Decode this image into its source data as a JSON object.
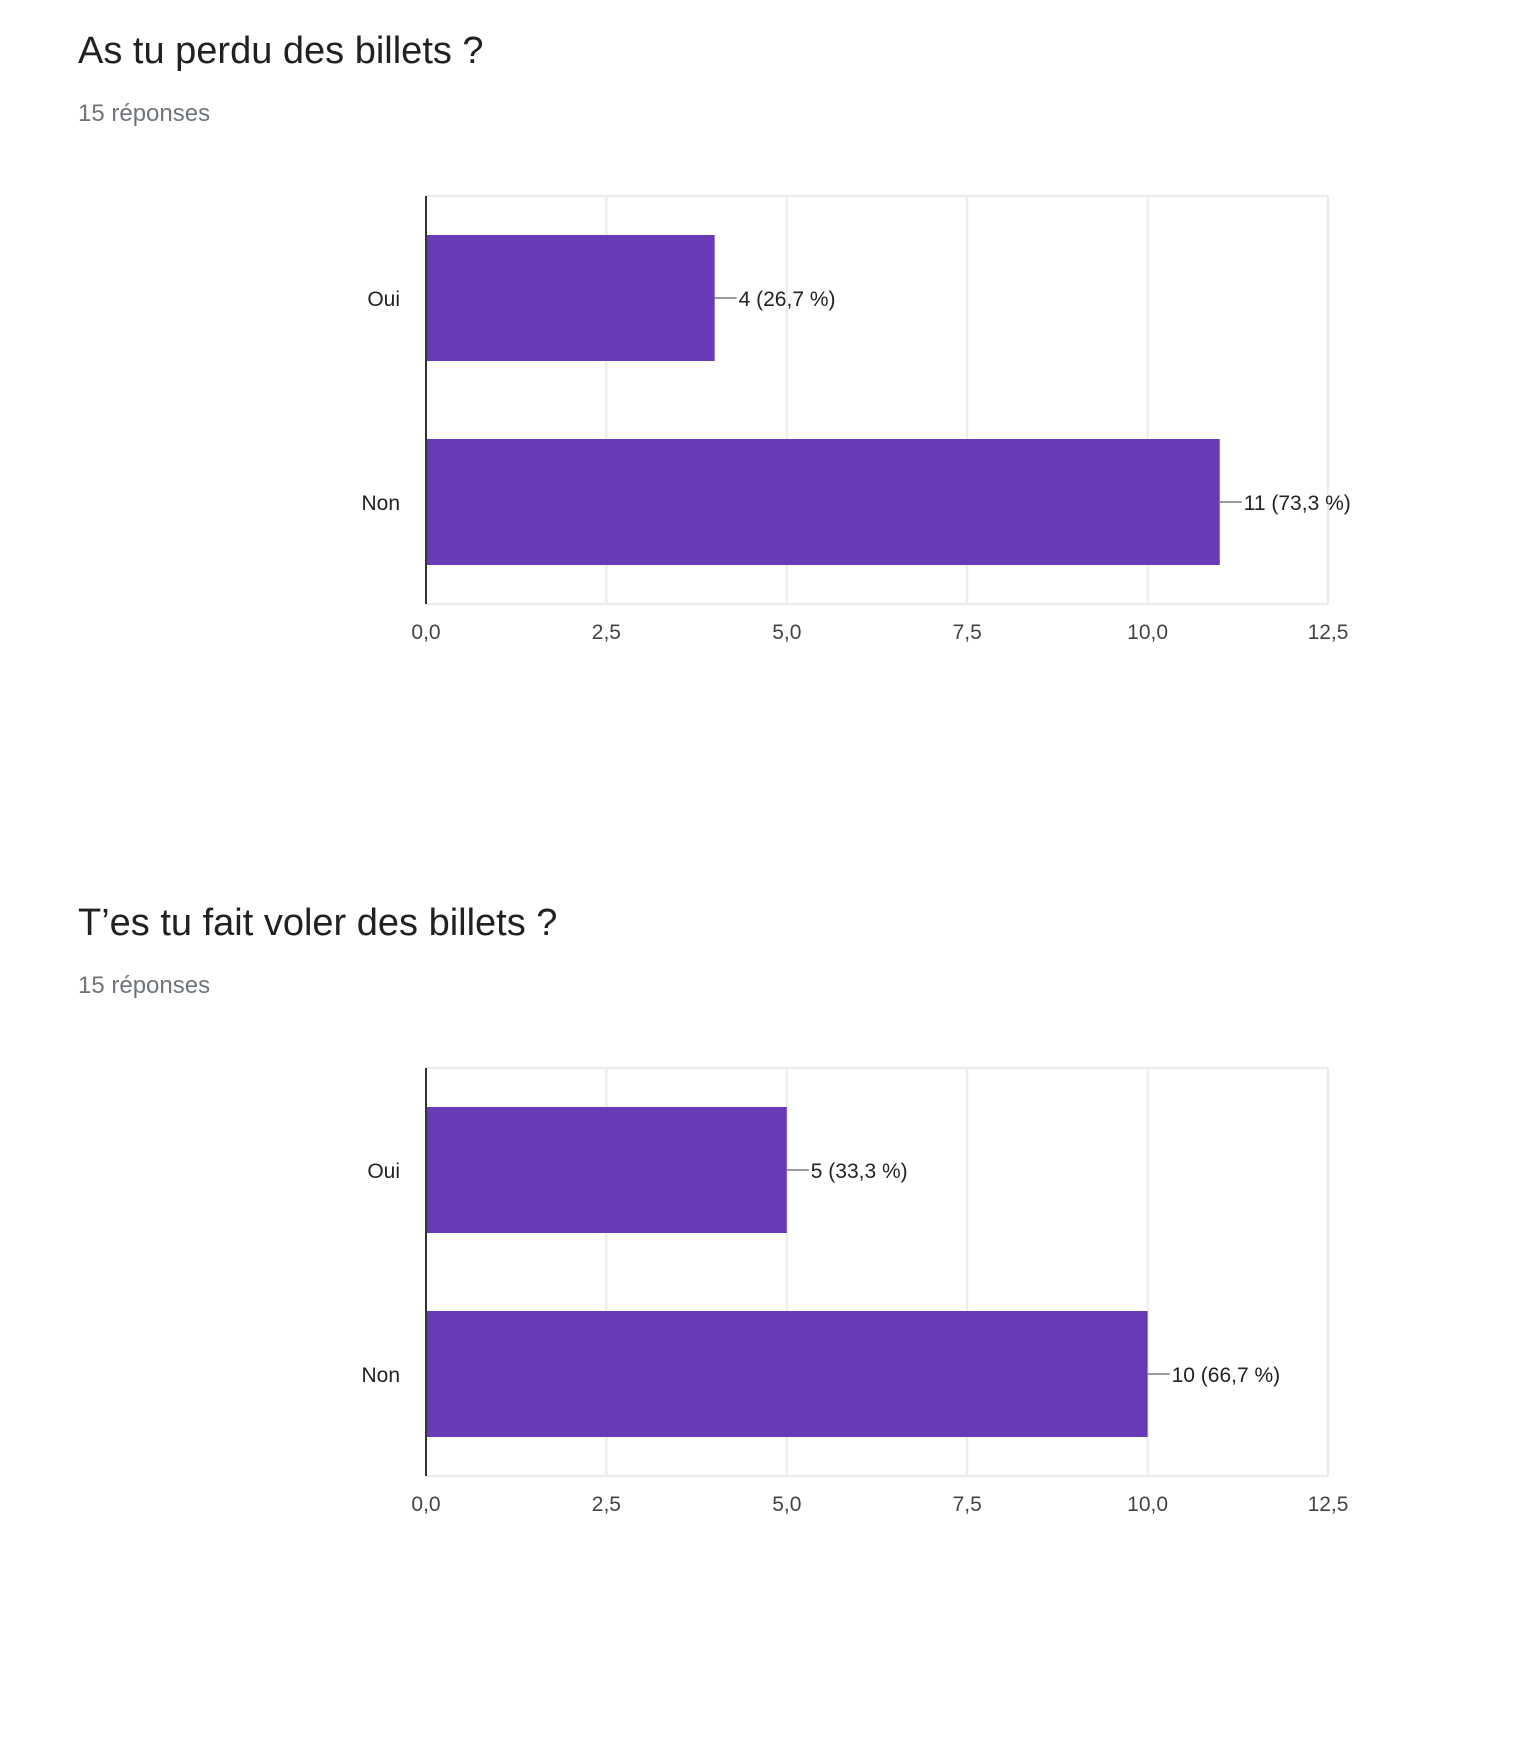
{
  "chart_data": [
    {
      "type": "bar",
      "orientation": "horizontal",
      "title": "As tu perdu des billets ?",
      "subtitle": "15 réponses",
      "categories": [
        "Oui",
        "Non"
      ],
      "values": [
        4,
        11
      ],
      "data_labels": [
        "4 (26,7 %)",
        "11 (73,3 %)"
      ],
      "xlim": [
        0,
        12.5
      ],
      "xticks": [
        "0,0",
        "2,5",
        "5,0",
        "7,5",
        "10,0",
        "12,5"
      ],
      "grid": true,
      "color": "#673ab7"
    },
    {
      "type": "bar",
      "orientation": "horizontal",
      "title": "T’es tu fait voler des billets ?",
      "subtitle": "15 réponses",
      "categories": [
        "Oui",
        "Non"
      ],
      "values": [
        5,
        10
      ],
      "data_labels": [
        "5 (33,3 %)",
        "10 (66,7 %)"
      ],
      "xlim": [
        0,
        12.5
      ],
      "xticks": [
        "0,0",
        "2,5",
        "5,0",
        "7,5",
        "10,0",
        "12,5"
      ],
      "grid": true,
      "color": "#673ab7"
    }
  ]
}
